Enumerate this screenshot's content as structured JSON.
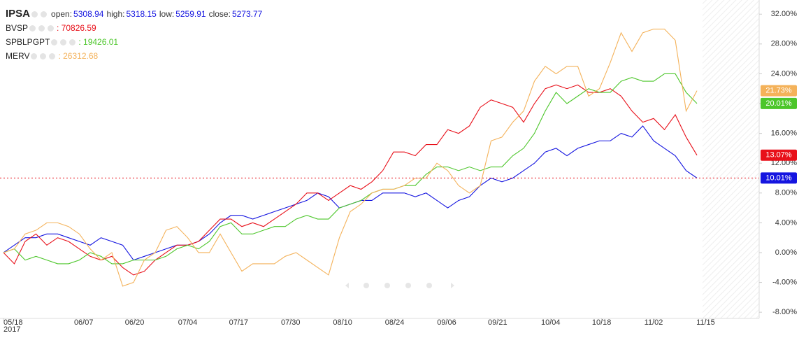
{
  "chart_data": {
    "type": "line",
    "ylim": [
      -8.83,
      33.9
    ],
    "yticks": [
      {
        "value": -8,
        "label": "-8.00%"
      },
      {
        "value": -4,
        "label": "-4.00%"
      },
      {
        "value": 0,
        "label": "0.00%"
      },
      {
        "value": 4,
        "label": "4.00%"
      },
      {
        "value": 8,
        "label": "8.00%"
      },
      {
        "value": 12,
        "label": "12.00%"
      },
      {
        "value": 16,
        "label": "16.00%"
      },
      {
        "value": 20,
        "label": "20.00%"
      },
      {
        "value": 24,
        "label": "24.00%"
      },
      {
        "value": 28,
        "label": "28.00%"
      },
      {
        "value": 32,
        "label": "32.00%"
      }
    ],
    "xlim": [
      0,
      69.74
    ],
    "xticks": [
      {
        "value": 0,
        "label": "05/18"
      },
      {
        "value": 7.4,
        "label": "06/07"
      },
      {
        "value": 12.1,
        "label": "06/20"
      },
      {
        "value": 17,
        "label": "07/04"
      },
      {
        "value": 21.7,
        "label": "07/17"
      },
      {
        "value": 26.5,
        "label": "07/30"
      },
      {
        "value": 31.3,
        "label": "08/10"
      },
      {
        "value": 36.1,
        "label": "08/24"
      },
      {
        "value": 40.9,
        "label": "09/06"
      },
      {
        "value": 45.6,
        "label": "09/21"
      },
      {
        "value": 50.5,
        "label": "10/04"
      },
      {
        "value": 55.2,
        "label": "10/18"
      },
      {
        "value": 60,
        "label": "11/02"
      },
      {
        "value": 64.8,
        "label": "11/15"
      }
    ],
    "x_year_label": "2017",
    "series": [
      {
        "name": "IPSA",
        "color": "#1515e0",
        "ohlc": [
          {
            "label": "open:",
            "value": 5308.94
          },
          {
            "label": "high:",
            "value": 5318.15
          },
          {
            "label": "low:",
            "value": 5259.91
          },
          {
            "label": "close:",
            "value": 5273.77
          }
        ],
        "last_value_label": "10.01%",
        "values": [
          0,
          1,
          2,
          2,
          2.5,
          2.5,
          2,
          1.5,
          1,
          2,
          1.5,
          1,
          -1,
          -0.5,
          0,
          0.5,
          1,
          1,
          1.5,
          2.5,
          4,
          5,
          5,
          4.5,
          5,
          5.5,
          6,
          6.5,
          7,
          8,
          7.5,
          6,
          6.5,
          7,
          7,
          8,
          8,
          8,
          7.5,
          8,
          7,
          6,
          7,
          7.5,
          9,
          10,
          9.5,
          10,
          11,
          12,
          13.5,
          14,
          13,
          14,
          14.5,
          15,
          15,
          16,
          15.5,
          17,
          15,
          14,
          13,
          11,
          10.01
        ]
      },
      {
        "name": "BVSP",
        "color": "#e8101a",
        "quote_label": ": 70826.59",
        "last_value_label": "13.07%",
        "values": [
          0,
          -1.5,
          1.5,
          2.5,
          1,
          2,
          1.5,
          0.5,
          -0.5,
          -1,
          -0.5,
          -2,
          -3,
          -2.5,
          -1,
          0,
          1,
          1,
          1.5,
          3,
          4.5,
          4.5,
          3.5,
          4,
          3.5,
          4.5,
          5.5,
          6.5,
          8,
          8,
          7,
          8,
          9,
          8.5,
          9.5,
          11,
          13.5,
          13.5,
          13,
          14.5,
          14.5,
          16.5,
          16,
          17,
          19.5,
          20.5,
          20,
          19.5,
          17.5,
          20,
          22,
          22.5,
          22,
          22.5,
          21.5,
          21.5,
          22,
          21,
          19,
          17.5,
          18,
          16.5,
          18.5,
          15.5,
          13.07
        ]
      },
      {
        "name": "SPBLPGPT",
        "color": "#4cc62a",
        "quote_label": ": 19426.01",
        "last_value_label": "20.01%",
        "values": [
          0,
          0.5,
          -1,
          -0.5,
          -1,
          -1.5,
          -1.5,
          -1,
          0,
          -0.5,
          -1.5,
          -1.5,
          -1,
          -1,
          -1,
          -0.5,
          0.5,
          1,
          0.5,
          1.5,
          3.5,
          4,
          2.5,
          2.5,
          3,
          3.5,
          3.5,
          4.5,
          5,
          4.5,
          4.5,
          6,
          6.5,
          7,
          8,
          8.5,
          8.5,
          9,
          9,
          10.5,
          11.5,
          11.5,
          11,
          11.5,
          11,
          11.5,
          11.5,
          13,
          14,
          16,
          19,
          21.5,
          20,
          21,
          22,
          21.5,
          21.5,
          23,
          23.5,
          23,
          23,
          24,
          24,
          21.5,
          20.01
        ]
      },
      {
        "name": "MERV",
        "color": "#f4b25a",
        "quote_label": ": 26312.68",
        "last_value_label": "21.73%",
        "values": [
          0,
          0.5,
          2.5,
          3,
          4,
          4,
          3.5,
          2.5,
          0.5,
          -1,
          0,
          -4.5,
          -4,
          -1,
          0,
          3,
          3.5,
          2,
          0,
          0,
          2.5,
          0,
          -2.5,
          -1.5,
          -1.5,
          -1.5,
          -0.5,
          0,
          -1,
          -2,
          -3,
          2,
          5.5,
          6.5,
          8,
          8.5,
          8.5,
          9,
          10,
          10,
          12,
          11,
          9,
          8,
          9,
          15,
          15.5,
          17.5,
          19,
          23,
          25,
          24,
          25,
          25,
          21,
          22,
          25.5,
          29.5,
          27,
          29.5,
          30,
          30,
          28.5,
          19,
          21.73
        ]
      }
    ]
  }
}
